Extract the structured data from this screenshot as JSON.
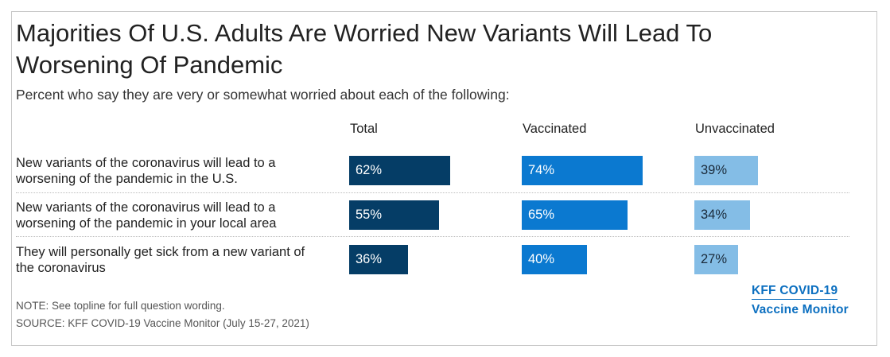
{
  "title": "Majorities Of U.S. Adults Are Worried New Variants Will Lead To Worsening Of Pandemic",
  "subtitle": "Percent who say they are very or somewhat worried about each of the following:",
  "columns": [
    "Total",
    "Vaccinated",
    "Unvaccinated"
  ],
  "chart_data": {
    "type": "bar",
    "orientation": "horizontal",
    "title": "Majorities Of U.S. Adults Are Worried New Variants Will Lead To Worsening Of Pandemic",
    "categories": [
      "New variants of the coronavirus will lead to a worsening of the pandemic in the U.S.",
      "New variants of the coronavirus will lead to a worsening of the pandemic in your local area",
      "They will personally get sick from a new variant of the coronavirus"
    ],
    "series": [
      {
        "name": "Total",
        "values": [
          62,
          55,
          36
        ],
        "labels": [
          "62%",
          "55%",
          "36%"
        ],
        "color": "#053d66"
      },
      {
        "name": "Vaccinated",
        "values": [
          74,
          65,
          40
        ],
        "labels": [
          "74%",
          "65%",
          "40%"
        ],
        "color": "#0b79d0"
      },
      {
        "name": "Unvaccinated",
        "values": [
          39,
          34,
          27
        ],
        "labels": [
          "39%",
          "34%",
          "27%"
        ],
        "color": "#84bde6"
      }
    ],
    "xlim": [
      0,
      100
    ],
    "grid": false,
    "legend": "column headers"
  },
  "rows": [
    {
      "label_line1": "New variants of the coronavirus will lead to a",
      "label_line2": "worsening of the pandemic in the U.S."
    },
    {
      "label_line1": "New variants of the coronavirus will lead to a",
      "label_line2": "worsening of the pandemic in your local area"
    },
    {
      "label_line1": "They will personally get sick from a new variant of",
      "label_line2": "the coronavirus"
    }
  ],
  "note": "NOTE: See topline for full question wording.",
  "source": "SOURCE: KFF COVID-19 Vaccine Monitor (July 15-27, 2021)",
  "logo": {
    "line1": "KFF COVID-19",
    "line2": "Vaccine Monitor"
  }
}
